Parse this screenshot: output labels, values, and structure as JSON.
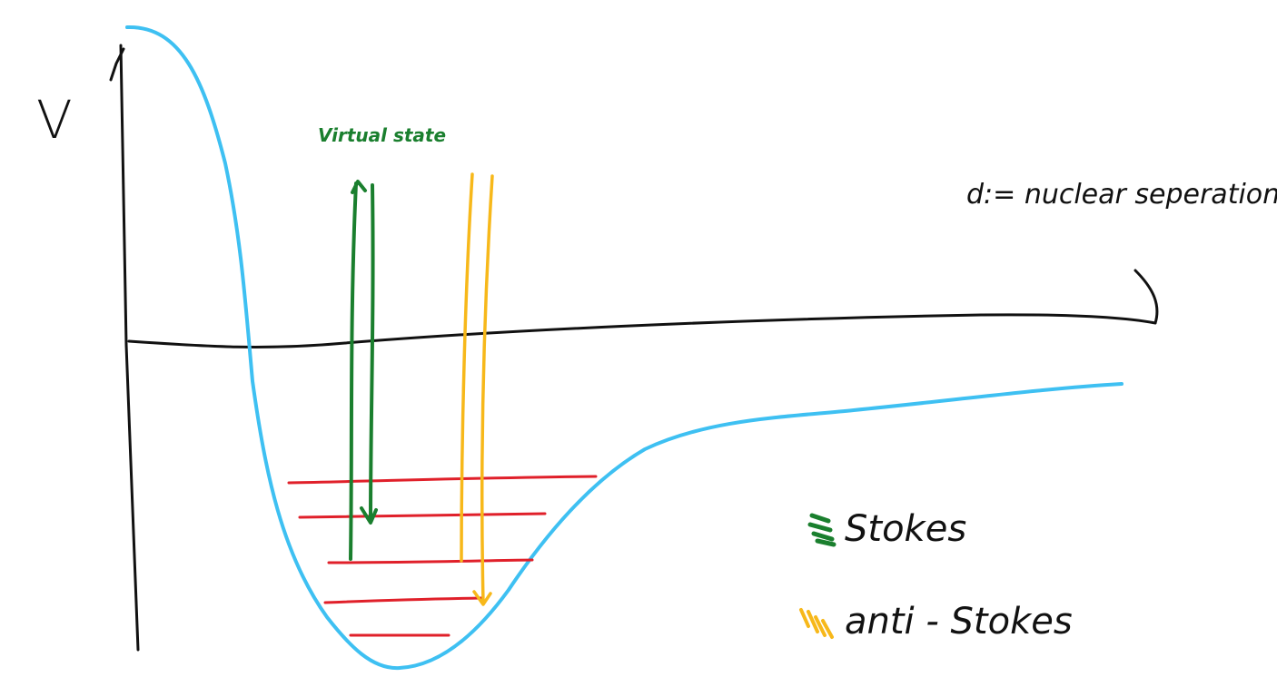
{
  "labels": {
    "y_axis": "V",
    "x_axis": "d:= nuclear seperation",
    "virtual_state": "Virtual state"
  },
  "legend": [
    {
      "label": "Stokes",
      "color": "#1a7f2e"
    },
    {
      "label": "anti - Stokes",
      "color": "#f7b81a"
    }
  ],
  "colors": {
    "axes": "#111111",
    "potential_curve": "#3ec0f2",
    "vibrational_levels": "#e0202a",
    "stokes": "#1a7f2e",
    "anti_stokes": "#f7b81a"
  }
}
